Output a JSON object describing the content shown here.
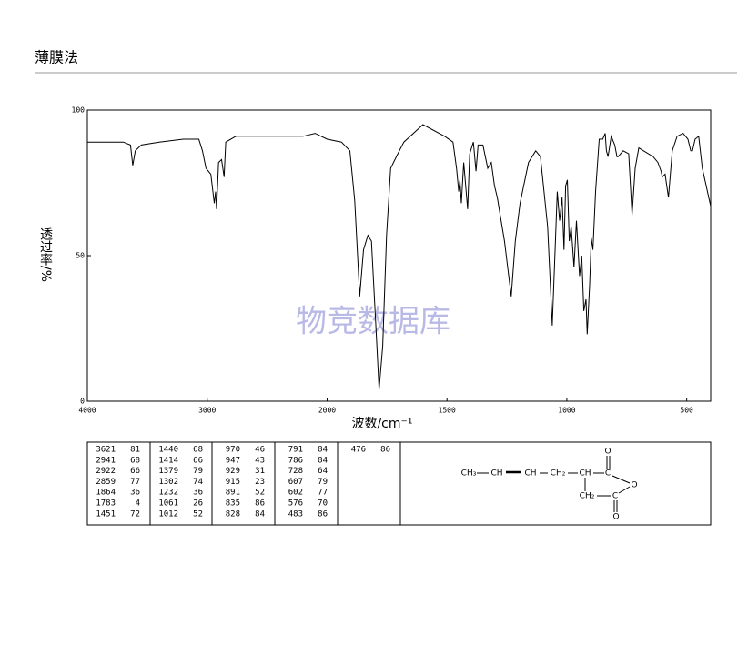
{
  "chart_data": {
    "type": "line",
    "title": "薄膜法",
    "xlabel": "波数/cm⁻¹",
    "ylabel": "透过率/%",
    "watermark": "物竞数据库",
    "xlim": [
      4000,
      400
    ],
    "x_scale_break": 2000,
    "xticks": [
      4000,
      3000,
      2000,
      1500,
      1000,
      500
    ],
    "ylim": [
      0,
      100
    ],
    "yticks": [
      0,
      50,
      100
    ],
    "color": "#000000",
    "series": [
      {
        "name": "IR",
        "x": [
          4000,
          3850,
          3700,
          3640,
          3621,
          3600,
          3550,
          3400,
          3200,
          3070,
          3040,
          3010,
          2970,
          2941,
          2930,
          2922,
          2905,
          2880,
          2859,
          2845,
          2760,
          2500,
          2200,
          2100,
          2000,
          1940,
          1905,
          1885,
          1864,
          1848,
          1830,
          1815,
          1798,
          1783,
          1768,
          1752,
          1735,
          1705,
          1680,
          1600,
          1510,
          1475,
          1460,
          1451,
          1446,
          1440,
          1430,
          1414,
          1405,
          1390,
          1379,
          1370,
          1350,
          1330,
          1315,
          1302,
          1290,
          1260,
          1232,
          1215,
          1195,
          1160,
          1130,
          1110,
          1080,
          1061,
          1050,
          1040,
          1030,
          1020,
          1012,
          1005,
          998,
          990,
          982,
          970,
          960,
          947,
          938,
          929,
          920,
          915,
          905,
          898,
          891,
          880,
          865,
          850,
          840,
          835,
          828,
          815,
          800,
          791,
          786,
          765,
          742,
          728,
          715,
          700,
          680,
          640,
          620,
          607,
          602,
          590,
          576,
          560,
          540,
          515,
          495,
          483,
          476,
          465,
          450,
          435,
          400
        ],
        "values": [
          89,
          89,
          89,
          88,
          81,
          86,
          88,
          89,
          90,
          90,
          86,
          80,
          78,
          68,
          72,
          66,
          82,
          83,
          77,
          89,
          91,
          91,
          91,
          92,
          90,
          89,
          86,
          69,
          36,
          52,
          57,
          55,
          28,
          4,
          19,
          57,
          80,
          85,
          89,
          95,
          91,
          89,
          80,
          72,
          76,
          68,
          82,
          66,
          85,
          89,
          79,
          88,
          88,
          80,
          82,
          74,
          70,
          55,
          36,
          55,
          68,
          82,
          86,
          84,
          60,
          26,
          50,
          72,
          62,
          70,
          52,
          74,
          76,
          55,
          60,
          46,
          62,
          43,
          50,
          31,
          35,
          23,
          40,
          56,
          52,
          72,
          90,
          90,
          92,
          86,
          84,
          91,
          88,
          84,
          84,
          86,
          85,
          64,
          80,
          87,
          86,
          84,
          82,
          79,
          77,
          78,
          70,
          86,
          91,
          92,
          90,
          86,
          86,
          90,
          91,
          80,
          67
        ]
      }
    ]
  },
  "peak_table": [
    [
      [
        3621,
        81
      ],
      [
        2941,
        68
      ],
      [
        2922,
        66
      ],
      [
        2859,
        77
      ],
      [
        1864,
        36
      ],
      [
        1783,
        4
      ],
      [
        1451,
        72
      ]
    ],
    [
      [
        1440,
        68
      ],
      [
        1414,
        66
      ],
      [
        1379,
        79
      ],
      [
        1302,
        74
      ],
      [
        1232,
        36
      ],
      [
        1061,
        26
      ],
      [
        1012,
        52
      ]
    ],
    [
      [
        970,
        46
      ],
      [
        947,
        43
      ],
      [
        929,
        31
      ],
      [
        915,
        23
      ],
      [
        891,
        52
      ],
      [
        835,
        86
      ],
      [
        828,
        84
      ]
    ],
    [
      [
        791,
        84
      ],
      [
        786,
        84
      ],
      [
        728,
        64
      ],
      [
        607,
        79
      ],
      [
        602,
        77
      ],
      [
        576,
        70
      ],
      [
        483,
        86
      ]
    ],
    [
      [
        476,
        86
      ]
    ]
  ],
  "structure": {
    "labels": [
      "CH₃",
      "CH",
      "CH",
      "CH₂",
      "CH",
      "C",
      "O",
      "O",
      "CH₂",
      "C",
      "O"
    ]
  }
}
